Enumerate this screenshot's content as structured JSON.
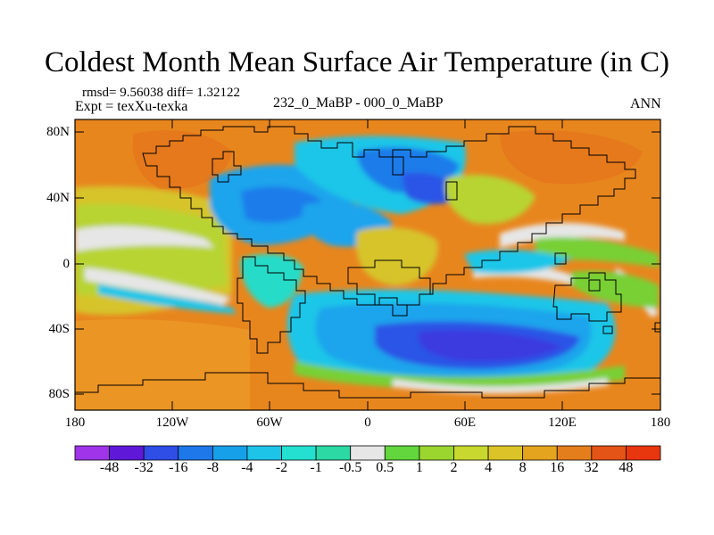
{
  "title": "Coldest Month Mean Surface Air Temperature (in C)",
  "stats_line": "rmsd= 9.56038 diff= 1.32122",
  "experiment_line": "Expt = texXu-texka",
  "subtitle": "232_0_MaBP - 000_0_MaBP",
  "season": "ANN",
  "lat_labels": [
    {
      "lat": 80,
      "label": "80N"
    },
    {
      "lat": 40,
      "label": "40N"
    },
    {
      "lat": 0,
      "label": "0"
    },
    {
      "lat": -40,
      "label": "40S"
    },
    {
      "lat": -80,
      "label": "80S"
    }
  ],
  "lon_labels": [
    {
      "lon": -180,
      "label": "180"
    },
    {
      "lon": -120,
      "label": "120W"
    },
    {
      "lon": -60,
      "label": "60W"
    },
    {
      "lon": 0,
      "label": "0"
    },
    {
      "lon": 60,
      "label": "60E"
    },
    {
      "lon": 120,
      "label": "120E"
    },
    {
      "lon": 180,
      "label": "180"
    }
  ],
  "colorbar": {
    "colors": [
      "#a034e8",
      "#5f18d8",
      "#2f4ee6",
      "#1f78ea",
      "#16a0ea",
      "#1ec3e8",
      "#24e0d0",
      "#2cd8a4",
      "#e6e6e6",
      "#62d63c",
      "#9ad62e",
      "#c8d82e",
      "#dcc428",
      "#e4a41e",
      "#e47e1c",
      "#e45416",
      "#e8360e"
    ],
    "labels": [
      "-48",
      "-32",
      "-16",
      "-8",
      "-4",
      "-2",
      "-1",
      "-0.5",
      "0.5",
      "1",
      "2",
      "4",
      "8",
      "16",
      "32",
      "48"
    ]
  },
  "field_colors": {
    "orange": "#e8861e",
    "deep_orange": "#e26a18",
    "light_orange": "#eca22a",
    "yellow": "#d6c42c",
    "yellow_green": "#b8d430",
    "green": "#78d034",
    "white": "#e6e6e6",
    "teal": "#28dcc8",
    "cyan": "#1ec6e8",
    "light_blue": "#1ca4ec",
    "blue": "#1e7cea",
    "dark_blue": "#2c54e6",
    "deep_blue": "#3a3ae0"
  }
}
